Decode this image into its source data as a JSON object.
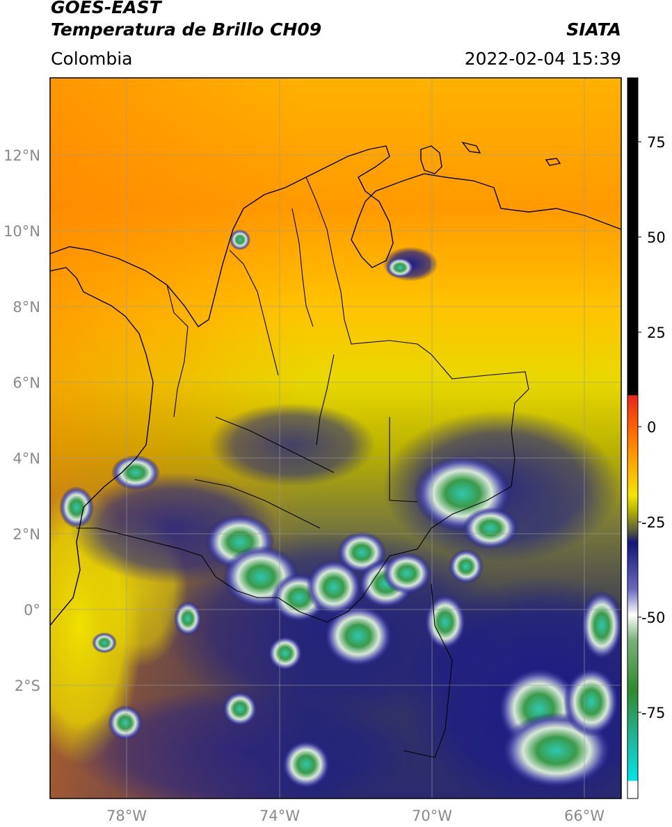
{
  "header": {
    "satellite": "GOES-EAST",
    "product": "Temperatura de Brillo CH09",
    "region": "Colombia",
    "source": "SIATA",
    "datetime": "2022-02-04 15:39"
  },
  "map": {
    "lon_range": [
      -80,
      -65
    ],
    "lat_range": [
      -5,
      14
    ],
    "lat_ticks": [
      "12°N",
      "10°N",
      "8°N",
      "6°N",
      "4°N",
      "2°N",
      "0°",
      "2°S"
    ],
    "lon_ticks": [
      "78°W",
      "74°W",
      "70°W",
      "66°W"
    ]
  },
  "colorbar": {
    "ticks": [
      "75",
      "50",
      "25",
      "0",
      "-25",
      "-50",
      "-75"
    ],
    "range": [
      -95,
      90
    ],
    "colors": {
      "warm_black": "#000000",
      "red": "#e8261a",
      "orange": "#ff8c00",
      "yellow": "#f2e600",
      "olive": "#6f6f3a",
      "navy": "#14147a",
      "white": "#ffffff",
      "green": "#2f8a2f",
      "cyan": "#00e5e5"
    }
  }
}
